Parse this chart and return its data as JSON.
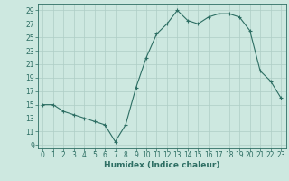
{
  "x": [
    0,
    1,
    2,
    3,
    4,
    5,
    6,
    7,
    8,
    9,
    10,
    11,
    12,
    13,
    14,
    15,
    16,
    17,
    18,
    19,
    20,
    21,
    22,
    23
  ],
  "y": [
    15,
    15,
    14,
    13.5,
    13,
    12.5,
    12,
    9.5,
    12,
    17.5,
    22,
    25.5,
    27,
    29,
    27.5,
    27,
    28,
    28.5,
    28.5,
    28,
    26,
    20,
    18.5,
    16
  ],
  "line_color": "#2d6e63",
  "marker": "+",
  "marker_size": 3.5,
  "marker_lw": 0.8,
  "bg_color": "#cde8e0",
  "grid_color": "#aecec6",
  "xlabel": "Humidex (Indice chaleur)",
  "xlim": [
    -0.5,
    23.5
  ],
  "ylim": [
    8.5,
    30
  ],
  "yticks": [
    9,
    11,
    13,
    15,
    17,
    19,
    21,
    23,
    25,
    27,
    29
  ],
  "xticks": [
    0,
    1,
    2,
    3,
    4,
    5,
    6,
    7,
    8,
    9,
    10,
    11,
    12,
    13,
    14,
    15,
    16,
    17,
    18,
    19,
    20,
    21,
    22,
    23
  ],
  "xlabel_fontsize": 6.5,
  "tick_fontsize": 5.5,
  "line_width": 0.8
}
